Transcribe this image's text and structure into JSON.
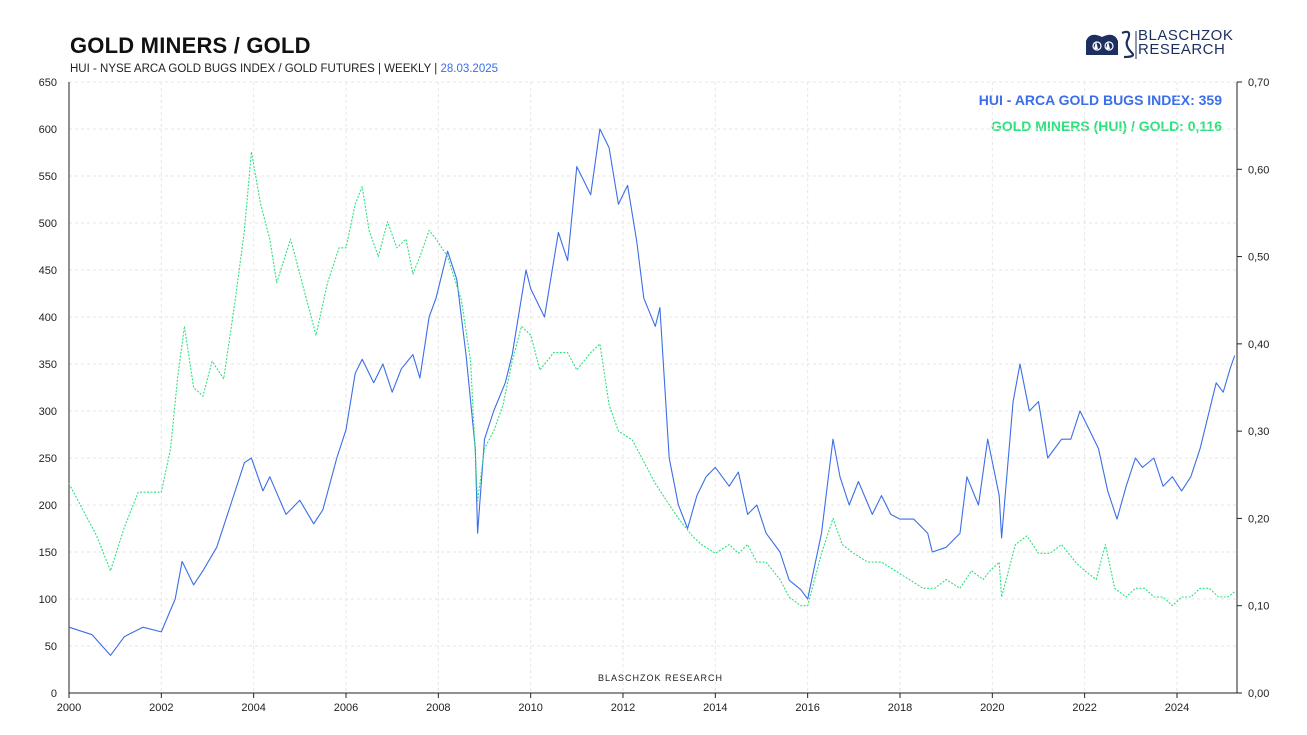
{
  "header": {
    "title": "GOLD MINERS / GOLD",
    "subtitle": "HUI - NYSE ARCA GOLD BUGS INDEX / GOLD FUTURES | WEEKLY |",
    "date": "28.03.2025"
  },
  "brand": {
    "line1": "BLASCHZOK",
    "line2": "RESEARCH",
    "watermark": "BLASCHZOK  RESEARCH"
  },
  "legend": {
    "hui": "HUI - ARCA GOLD BUGS INDEX: 359",
    "ratio": "GOLD MINERS (HUI) / GOLD: 0,116"
  },
  "colors": {
    "hui": "#3b6ee8",
    "ratio": "#2fe07e",
    "grid": "#e6e6e6",
    "axis": "#222222"
  },
  "chart_data": {
    "type": "line",
    "title": "GOLD MINERS / GOLD",
    "xlabel": "",
    "ylabel": "",
    "x_range": [
      2000,
      2025.3
    ],
    "x_ticks": [
      "2000",
      "2002",
      "2004",
      "2006",
      "2008",
      "2010",
      "2012",
      "2014",
      "2016",
      "2018",
      "2020",
      "2022",
      "2024"
    ],
    "y_left": {
      "range": [
        0,
        650
      ],
      "ticks": [
        "0",
        "50",
        "100",
        "150",
        "200",
        "250",
        "300",
        "350",
        "400",
        "450",
        "500",
        "550",
        "600",
        "650"
      ]
    },
    "y_right": {
      "range": [
        0,
        0.7
      ],
      "ticks": [
        "0,00",
        "0,10",
        "0,20",
        "0,30",
        "0,40",
        "0,50",
        "0,60",
        "0,70"
      ]
    },
    "grid": true,
    "series": [
      {
        "name": "HUI - ARCA GOLD BUGS INDEX",
        "axis": "left",
        "style": "solid",
        "last_value": 359,
        "x": [
          2000.0,
          2000.5,
          2000.9,
          2001.2,
          2001.6,
          2002.0,
          2002.3,
          2002.45,
          2002.7,
          2002.9,
          2003.2,
          2003.5,
          2003.8,
          2003.95,
          2004.2,
          2004.35,
          2004.7,
          2005.0,
          2005.3,
          2005.5,
          2005.8,
          2006.0,
          2006.2,
          2006.35,
          2006.6,
          2006.8,
          2007.0,
          2007.2,
          2007.45,
          2007.6,
          2007.8,
          2007.95,
          2008.2,
          2008.4,
          2008.6,
          2008.8,
          2008.85,
          2009.0,
          2009.2,
          2009.45,
          2009.6,
          2009.9,
          2010.0,
          2010.3,
          2010.6,
          2010.8,
          2011.0,
          2011.3,
          2011.5,
          2011.7,
          2011.9,
          2012.1,
          2012.3,
          2012.45,
          2012.7,
          2012.8,
          2013.0,
          2013.2,
          2013.4,
          2013.6,
          2013.8,
          2014.0,
          2014.3,
          2014.5,
          2014.7,
          2014.9,
          2015.1,
          2015.4,
          2015.6,
          2015.85,
          2016.0,
          2016.3,
          2016.55,
          2016.7,
          2016.9,
          2017.1,
          2017.4,
          2017.6,
          2017.8,
          2018.0,
          2018.3,
          2018.6,
          2018.7,
          2019.0,
          2019.3,
          2019.45,
          2019.7,
          2019.9,
          2020.15,
          2020.2,
          2020.45,
          2020.6,
          2020.8,
          2021.0,
          2021.2,
          2021.5,
          2021.7,
          2021.9,
          2022.1,
          2022.3,
          2022.5,
          2022.7,
          2022.9,
          2023.1,
          2023.25,
          2023.5,
          2023.7,
          2023.9,
          2024.1,
          2024.3,
          2024.5,
          2024.7,
          2024.85,
          2025.0,
          2025.15,
          2025.25
        ],
        "values": [
          70,
          62,
          40,
          60,
          70,
          65,
          100,
          140,
          115,
          130,
          155,
          200,
          245,
          250,
          215,
          230,
          190,
          205,
          180,
          195,
          250,
          280,
          340,
          355,
          330,
          350,
          320,
          345,
          360,
          335,
          400,
          420,
          470,
          440,
          360,
          260,
          170,
          270,
          300,
          330,
          360,
          450,
          430,
          400,
          490,
          460,
          560,
          530,
          600,
          580,
          520,
          540,
          480,
          420,
          390,
          410,
          250,
          200,
          175,
          210,
          230,
          240,
          220,
          235,
          190,
          200,
          170,
          150,
          120,
          110,
          100,
          170,
          270,
          230,
          200,
          225,
          190,
          210,
          190,
          185,
          185,
          170,
          150,
          155,
          170,
          230,
          200,
          270,
          210,
          165,
          310,
          350,
          300,
          310,
          250,
          270,
          270,
          300,
          280,
          260,
          215,
          185,
          220,
          250,
          240,
          250,
          220,
          230,
          215,
          230,
          260,
          300,
          330,
          320,
          345,
          359
        ]
      },
      {
        "name": "GOLD MINERS (HUI) / GOLD",
        "axis": "right",
        "style": "dotted",
        "last_value": 0.116,
        "x": [
          2000.0,
          2000.3,
          2000.6,
          2000.9,
          2001.2,
          2001.5,
          2001.8,
          2002.0,
          2002.2,
          2002.35,
          2002.5,
          2002.7,
          2002.9,
          2003.1,
          2003.35,
          2003.6,
          2003.8,
          2003.95,
          2004.15,
          2004.35,
          2004.5,
          2004.8,
          2005.0,
          2005.35,
          2005.6,
          2005.85,
          2006.0,
          2006.2,
          2006.35,
          2006.5,
          2006.7,
          2006.9,
          2007.1,
          2007.3,
          2007.45,
          2007.6,
          2007.8,
          2007.95,
          2008.2,
          2008.5,
          2008.7,
          2008.85,
          2009.0,
          2009.2,
          2009.4,
          2009.6,
          2009.8,
          2010.0,
          2010.2,
          2010.5,
          2010.8,
          2011.0,
          2011.3,
          2011.5,
          2011.7,
          2011.9,
          2012.2,
          2012.4,
          2012.7,
          2012.95,
          2013.2,
          2013.5,
          2013.7,
          2014.0,
          2014.3,
          2014.5,
          2014.7,
          2014.9,
          2015.1,
          2015.4,
          2015.6,
          2015.85,
          2016.0,
          2016.3,
          2016.55,
          2016.75,
          2017.0,
          2017.3,
          2017.6,
          2017.9,
          2018.2,
          2018.5,
          2018.75,
          2019.0,
          2019.3,
          2019.55,
          2019.8,
          2019.95,
          2020.15,
          2020.2,
          2020.5,
          2020.75,
          2021.0,
          2021.25,
          2021.5,
          2021.8,
          2022.0,
          2022.25,
          2022.45,
          2022.65,
          2022.9,
          2023.1,
          2023.3,
          2023.5,
          2023.7,
          2023.9,
          2024.1,
          2024.3,
          2024.5,
          2024.7,
          2024.9,
          2025.1,
          2025.25
        ],
        "values": [
          0.24,
          0.21,
          0.18,
          0.14,
          0.19,
          0.23,
          0.23,
          0.23,
          0.28,
          0.36,
          0.42,
          0.35,
          0.34,
          0.38,
          0.36,
          0.45,
          0.53,
          0.62,
          0.56,
          0.52,
          0.47,
          0.52,
          0.48,
          0.41,
          0.47,
          0.51,
          0.51,
          0.56,
          0.58,
          0.53,
          0.5,
          0.54,
          0.51,
          0.52,
          0.48,
          0.5,
          0.53,
          0.52,
          0.5,
          0.45,
          0.38,
          0.22,
          0.28,
          0.3,
          0.33,
          0.38,
          0.42,
          0.41,
          0.37,
          0.39,
          0.39,
          0.37,
          0.39,
          0.4,
          0.33,
          0.3,
          0.29,
          0.27,
          0.24,
          0.22,
          0.2,
          0.18,
          0.17,
          0.16,
          0.17,
          0.16,
          0.17,
          0.15,
          0.15,
          0.13,
          0.11,
          0.1,
          0.1,
          0.16,
          0.2,
          0.17,
          0.16,
          0.15,
          0.15,
          0.14,
          0.13,
          0.12,
          0.12,
          0.13,
          0.12,
          0.14,
          0.13,
          0.14,
          0.15,
          0.11,
          0.17,
          0.18,
          0.16,
          0.16,
          0.17,
          0.15,
          0.14,
          0.13,
          0.17,
          0.12,
          0.11,
          0.12,
          0.12,
          0.11,
          0.11,
          0.1,
          0.11,
          0.11,
          0.12,
          0.12,
          0.11,
          0.11,
          0.116
        ]
      }
    ]
  }
}
